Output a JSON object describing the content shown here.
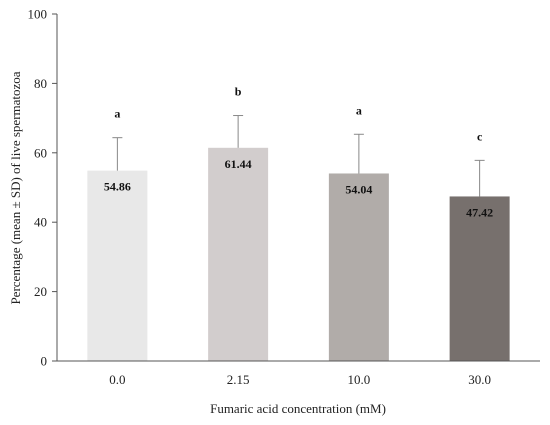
{
  "chart_data": {
    "type": "bar",
    "title": "",
    "xlabel": "Fumaric acid concentration (mM)",
    "ylabel": "Percentage (mean ± SD) of live spermatozoa",
    "ylim": [
      0,
      100
    ],
    "yticks": [
      0,
      20,
      40,
      60,
      80,
      100
    ],
    "categories": [
      "0.0",
      "2.15",
      "10.0",
      "30.0"
    ],
    "values": [
      54.86,
      61.44,
      54.04,
      47.42
    ],
    "value_labels": [
      "54.86",
      "61.44",
      "54.04",
      "47.42"
    ],
    "errors": [
      9.5,
      9.3,
      11.3,
      10.4
    ],
    "significance_letters": [
      "a",
      "b",
      "a",
      "c"
    ],
    "bar_colors": [
      "#e8e8e8",
      "#d2cdcd",
      "#b1aca9",
      "#77706d"
    ],
    "error_bar_color": "#888888",
    "axis_color": "#555555",
    "grid": false,
    "legend": "none"
  }
}
